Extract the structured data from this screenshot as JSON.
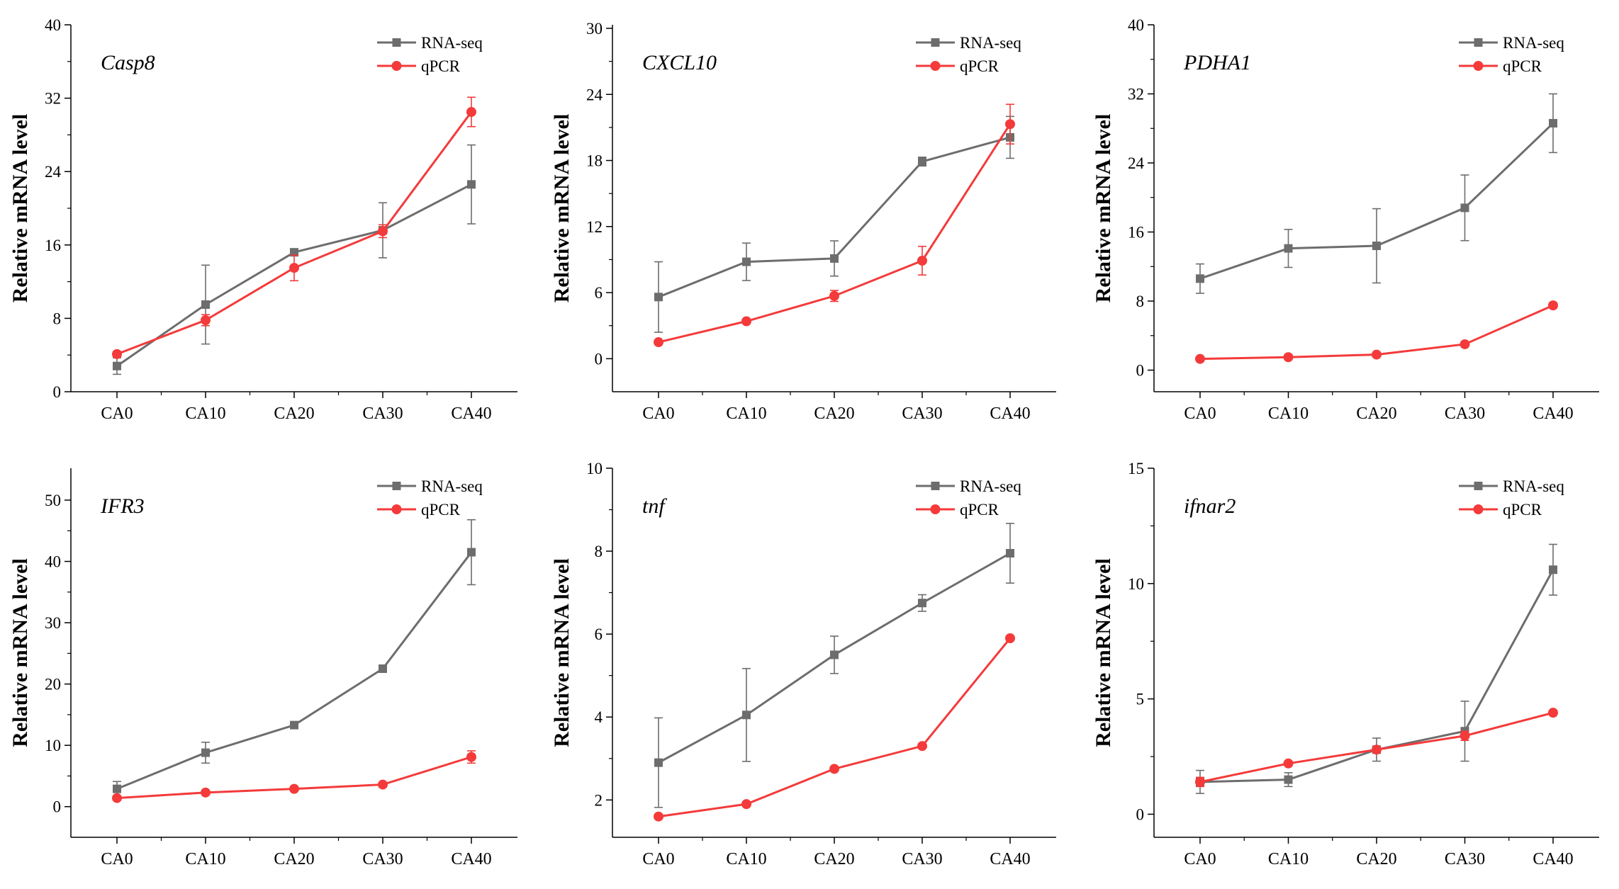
{
  "colors": {
    "rna": "#6d6d6d",
    "qpcr": "#f43a3a",
    "axis": "#000000"
  },
  "legend": {
    "rna_label": "RNA-seq",
    "qpcr_label": "qPCR",
    "placement": "top-right"
  },
  "chart_data": [
    {
      "type": "line",
      "title": "Casp8",
      "ylabel": "Relative mRNA level",
      "categories": [
        "CA0",
        "CA10",
        "CA20",
        "CA30",
        "CA40"
      ],
      "ylim": [
        0,
        40
      ],
      "yticks": [
        0,
        8,
        16,
        24,
        32,
        40
      ],
      "series": [
        {
          "name": "RNA-seq",
          "values": [
            2.8,
            9.5,
            15.2,
            17.6,
            22.6
          ],
          "errors": [
            0.9,
            4.3,
            0.3,
            3.0,
            4.3
          ]
        },
        {
          "name": "qPCR",
          "values": [
            4.1,
            7.8,
            13.5,
            17.5,
            30.5
          ],
          "errors": [
            0.3,
            0.6,
            1.4,
            0.7,
            1.6
          ]
        }
      ]
    },
    {
      "type": "line",
      "title": "CXCL10",
      "ylabel": "Relative mRNA level",
      "categories": [
        "CA0",
        "CA10",
        "CA20",
        "CA30",
        "CA40"
      ],
      "ylim": [
        -3,
        30
      ],
      "yticks": [
        0,
        6,
        12,
        18,
        24,
        30
      ],
      "series": [
        {
          "name": "RNA-seq",
          "values": [
            5.6,
            8.8,
            9.1,
            17.9,
            20.1
          ],
          "errors": [
            3.2,
            1.7,
            1.6,
            0.4,
            1.9
          ]
        },
        {
          "name": "qPCR",
          "values": [
            1.5,
            3.4,
            5.7,
            8.9,
            21.3
          ],
          "errors": [
            0.1,
            0.2,
            0.5,
            1.3,
            1.8
          ]
        }
      ]
    },
    {
      "type": "line",
      "title": "PDHA1",
      "ylabel": "Relative mRNA level",
      "categories": [
        "CA0",
        "CA10",
        "CA20",
        "CA30",
        "CA40"
      ],
      "ylim": [
        -2.5,
        40
      ],
      "yticks": [
        0,
        8,
        16,
        24,
        32,
        40
      ],
      "series": [
        {
          "name": "RNA-seq",
          "values": [
            10.6,
            14.1,
            14.4,
            18.8,
            28.6
          ],
          "errors": [
            1.7,
            2.2,
            4.3,
            3.8,
            3.4
          ]
        },
        {
          "name": "qPCR",
          "values": [
            1.3,
            1.5,
            1.8,
            3.0,
            7.5
          ],
          "errors": [
            0.1,
            0.1,
            0.2,
            0.2,
            0.3
          ]
        }
      ]
    },
    {
      "type": "line",
      "title": "IFR3",
      "ylabel": "Relative mRNA level",
      "categories": [
        "CA0",
        "CA10",
        "CA20",
        "CA30",
        "CA40"
      ],
      "ylim": [
        -5,
        55
      ],
      "yticks": [
        0,
        10,
        20,
        30,
        40,
        50
      ],
      "series": [
        {
          "name": "RNA-seq",
          "values": [
            2.9,
            8.8,
            13.3,
            22.5,
            41.5
          ],
          "errors": [
            1.2,
            1.7,
            0.4,
            0.4,
            5.3
          ]
        },
        {
          "name": "qPCR",
          "values": [
            1.4,
            2.3,
            2.9,
            3.6,
            8.1
          ],
          "errors": [
            0.2,
            0.2,
            0.2,
            0.3,
            1.0
          ]
        }
      ]
    },
    {
      "type": "line",
      "title": "tnf",
      "ylabel": "Relative mRNA level",
      "categories": [
        "CA0",
        "CA10",
        "CA20",
        "CA30",
        "CA40"
      ],
      "ylim": [
        1.1,
        10
      ],
      "yticks": [
        2,
        4,
        6,
        8,
        10
      ],
      "series": [
        {
          "name": "RNA-seq",
          "values": [
            2.9,
            4.05,
            5.5,
            6.75,
            7.95
          ],
          "errors": [
            1.08,
            1.12,
            0.45,
            0.2,
            0.72
          ]
        },
        {
          "name": "qPCR",
          "values": [
            1.6,
            1.9,
            2.75,
            3.3,
            5.9
          ],
          "errors": [
            0.03,
            0.03,
            0.05,
            0.05,
            0.05
          ]
        }
      ]
    },
    {
      "type": "line",
      "title": "ifnar2",
      "ylabel": "Relative mRNA level",
      "categories": [
        "CA0",
        "CA10",
        "CA20",
        "CA30",
        "CA40"
      ],
      "ylim": [
        -1,
        15
      ],
      "yticks": [
        0,
        5,
        10,
        15
      ],
      "series": [
        {
          "name": "RNA-seq",
          "values": [
            1.4,
            1.5,
            2.8,
            3.6,
            10.6
          ],
          "errors": [
            0.5,
            0.3,
            0.5,
            1.3,
            1.1
          ]
        },
        {
          "name": "qPCR",
          "values": [
            1.4,
            2.2,
            2.8,
            3.4,
            4.4
          ],
          "errors": [
            0.2,
            0.1,
            0.1,
            0.2,
            0.1
          ]
        }
      ]
    }
  ]
}
